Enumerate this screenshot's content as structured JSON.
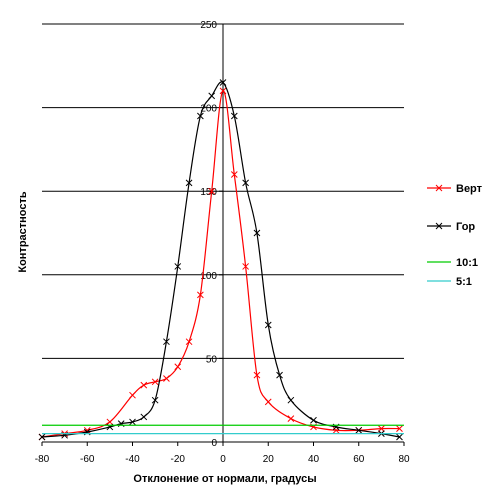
{
  "chart_data": {
    "type": "line",
    "xlabel": "Отклонение от нормали, градусы",
    "ylabel": "Контрастность",
    "xlim": [
      -80,
      80
    ],
    "ylim": [
      0,
      250
    ],
    "xticks": [
      -80,
      -60,
      -40,
      -20,
      0,
      20,
      40,
      60,
      80
    ],
    "yticks": [
      0,
      50,
      100,
      150,
      200,
      250
    ],
    "grid": "horizontal",
    "legend_position": "right",
    "series": [
      {
        "name": "Верт",
        "color": "#ff0000",
        "marker": "x",
        "x": [
          -80,
          -70,
          -60,
          -50,
          -40,
          -35,
          -30,
          -25,
          -20,
          -15,
          -10,
          -5,
          0,
          5,
          10,
          15,
          20,
          30,
          40,
          50,
          60,
          70,
          78
        ],
        "y": [
          3,
          5,
          7,
          12,
          28,
          34,
          36,
          38,
          45,
          60,
          88,
          150,
          210,
          160,
          105,
          40,
          24,
          14,
          9,
          7,
          7,
          8,
          8
        ]
      },
      {
        "name": "Гор",
        "color": "#000000",
        "marker": "x",
        "x": [
          -80,
          -70,
          -60,
          -50,
          -45,
          -40,
          -35,
          -30,
          -25,
          -20,
          -15,
          -10,
          -5,
          0,
          5,
          10,
          15,
          20,
          25,
          30,
          40,
          50,
          60,
          70,
          78
        ],
        "y": [
          3,
          4,
          6,
          9,
          11,
          12,
          15,
          25,
          60,
          105,
          155,
          195,
          207,
          215,
          195,
          155,
          125,
          70,
          40,
          25,
          13,
          9,
          7,
          5,
          3
        ]
      },
      {
        "name": "10:1",
        "color": "#00cc00",
        "marker": "none",
        "x": [
          -80,
          80
        ],
        "y": [
          10,
          10
        ]
      },
      {
        "name": "5:1",
        "color": "#33cccc",
        "marker": "none",
        "x": [
          -80,
          80
        ],
        "y": [
          5,
          5
        ]
      }
    ]
  }
}
